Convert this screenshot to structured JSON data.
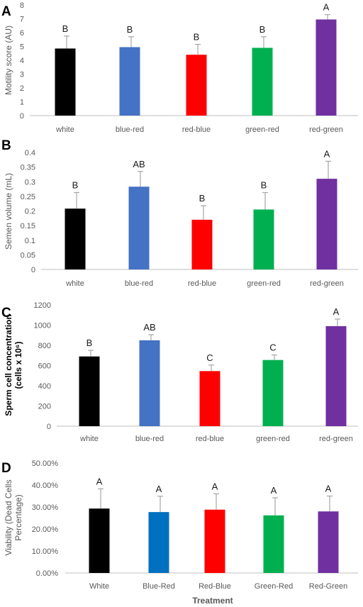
{
  "chart_data": [
    {
      "panel": "A",
      "type": "bar",
      "ylabel": "Motility score (AU)",
      "categories": [
        "white",
        "blue-red",
        "red-blue",
        "green-red",
        "red-green"
      ],
      "values": [
        4.85,
        4.95,
        4.4,
        4.9,
        6.95
      ],
      "errors": [
        0.9,
        0.75,
        0.75,
        0.8,
        0.35
      ],
      "letters": [
        "B",
        "B",
        "B",
        "B",
        "A"
      ],
      "colors": [
        "#000000",
        "#4472c4",
        "#ff0000",
        "#00b050",
        "#7030a0"
      ],
      "ylim": [
        0,
        8
      ],
      "yticks": [
        "0",
        "1",
        "2",
        "3",
        "4",
        "5",
        "6",
        "7",
        "8"
      ]
    },
    {
      "panel": "B",
      "type": "bar",
      "ylabel": "Semen volume (mL)",
      "categories": [
        "white",
        "blue-red",
        "red-blue",
        "green-red",
        "red-green"
      ],
      "values": [
        0.208,
        0.283,
        0.17,
        0.205,
        0.31
      ],
      "errors": [
        0.055,
        0.052,
        0.048,
        0.058,
        0.06
      ],
      "letters": [
        "B",
        "AB",
        "B",
        "B",
        "A"
      ],
      "colors": [
        "#000000",
        "#4472c4",
        "#ff0000",
        "#00b050",
        "#7030a0"
      ],
      "ylim": [
        0,
        0.4
      ],
      "yticks": [
        "0",
        "0.05",
        "0.1",
        "0.15",
        "0.2",
        "0.25",
        "0.3",
        "0.35",
        "0.4"
      ]
    },
    {
      "panel": "C",
      "type": "bar",
      "ylabel_lines": [
        "Sperm cell concentration",
        "(cells x 10⁶)"
      ],
      "categories": [
        "white",
        "blue-red",
        "red-blue",
        "green-red",
        "red-green"
      ],
      "values": [
        690,
        850,
        545,
        655,
        990
      ],
      "errors": [
        60,
        55,
        60,
        50,
        70
      ],
      "letters": [
        "B",
        "AB",
        "C",
        "C",
        "A"
      ],
      "colors": [
        "#000000",
        "#4472c4",
        "#ff0000",
        "#00b050",
        "#7030a0"
      ],
      "ylim": [
        0,
        1200
      ],
      "yticks": [
        "0",
        "200",
        "400",
        "600",
        "800",
        "1000",
        "1200"
      ]
    },
    {
      "panel": "D",
      "type": "bar",
      "ylabel_lines": [
        "Viability (Dead Cells",
        "Percentage)"
      ],
      "categories": [
        "White",
        "Blue-Red",
        "Red-Blue",
        "Green-Red",
        "Red-Green"
      ],
      "values": [
        0.293,
        0.277,
        0.288,
        0.262,
        0.28
      ],
      "errors": [
        0.09,
        0.072,
        0.072,
        0.08,
        0.07
      ],
      "letters": [
        "A",
        "A",
        "A",
        "A",
        "A"
      ],
      "colors": [
        "#000000",
        "#0070c0",
        "#ff0000",
        "#00b050",
        "#7030a0"
      ],
      "ylim": [
        0,
        0.5
      ],
      "yticks": [
        "0.00%",
        "10.00%",
        "20.00%",
        "30.00%",
        "40.00%",
        "50.00%"
      ],
      "xlabel": "Treatment"
    }
  ]
}
